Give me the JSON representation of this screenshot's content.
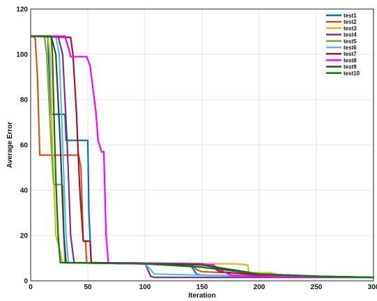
{
  "chart_data": {
    "type": "line",
    "xlabel": "Iteration",
    "ylabel": "Average Error",
    "xlim": [
      0,
      300
    ],
    "ylim": [
      0,
      120
    ],
    "xticks": [
      0,
      50,
      100,
      150,
      200,
      250,
      300
    ],
    "yticks": [
      0,
      20,
      40,
      60,
      80,
      100,
      120
    ],
    "grid": true,
    "legend_position": "top-right",
    "series": [
      {
        "name": "test1",
        "color": "#0072BD",
        "x": [
          0,
          14,
          15,
          18,
          30,
          31,
          47,
          50,
          51,
          53,
          54,
          100,
          120,
          140,
          145,
          150,
          200,
          250,
          300
        ],
        "y": [
          108,
          108,
          107,
          73.5,
          73.5,
          62,
          62,
          62,
          30,
          8,
          8,
          7.8,
          7.5,
          7,
          3,
          2.5,
          2,
          1.7,
          1.5
        ]
      },
      {
        "name": "test2",
        "color": "#D95319",
        "x": [
          0,
          2,
          4,
          6,
          8,
          10,
          42,
          44,
          46,
          48,
          49,
          100,
          140,
          145,
          150,
          200,
          250,
          300
        ],
        "y": [
          108,
          108,
          107,
          90,
          55.5,
          55.5,
          55.5,
          50,
          17.5,
          17.5,
          8,
          7.8,
          7.5,
          5,
          4,
          3,
          2,
          1.5
        ]
      },
      {
        "name": "test3",
        "color": "#EDB120",
        "x": [
          0,
          15,
          17,
          19,
          22,
          25,
          28,
          30,
          100,
          180,
          190,
          191,
          210,
          215,
          216,
          250,
          300
        ],
        "y": [
          108,
          108,
          100,
          60,
          20,
          14.5,
          8,
          8,
          7.5,
          7.5,
          7,
          3.5,
          3.5,
          3,
          2,
          1.8,
          1.5
        ]
      },
      {
        "name": "test4",
        "color": "#7E2F8E",
        "x": [
          0,
          24,
          28,
          32,
          35,
          38,
          40,
          100,
          105,
          108,
          150,
          200,
          250,
          300
        ],
        "y": [
          108,
          108,
          100,
          60,
          20,
          8,
          8,
          7.8,
          2,
          1.5,
          1.5,
          1.5,
          1.5,
          1.5
        ]
      },
      {
        "name": "test5",
        "color": "#77AC30",
        "x": [
          0,
          12,
          14,
          18,
          20,
          21,
          27,
          28,
          29,
          30,
          100,
          150,
          200,
          250,
          300
        ],
        "y": [
          108,
          108,
          100,
          60,
          43,
          42.5,
          42.5,
          42,
          20,
          8,
          7.8,
          7,
          3,
          2,
          1.5
        ]
      },
      {
        "name": "test6",
        "color": "#4DBEEE",
        "x": [
          0,
          22,
          25,
          28,
          31,
          33,
          35,
          100,
          105,
          108,
          150,
          200,
          250,
          300
        ],
        "y": [
          108,
          108,
          100,
          60,
          20,
          8,
          8,
          7.5,
          5,
          3,
          2.5,
          2,
          1.8,
          1.5
        ]
      },
      {
        "name": "test7",
        "color": "#A2142F",
        "x": [
          0,
          35,
          37,
          40,
          43,
          46,
          47,
          52,
          53,
          55,
          100,
          150,
          160,
          165,
          200,
          250,
          300
        ],
        "y": [
          108,
          107.5,
          100,
          75,
          40,
          18,
          17.5,
          17.5,
          8,
          8,
          7.8,
          7.5,
          6,
          4,
          2.5,
          2,
          1.5
        ]
      },
      {
        "name": "test8",
        "color": "#FF00FF",
        "x": [
          0,
          30,
          33,
          35,
          45,
          49,
          52,
          57,
          59,
          62,
          64,
          66,
          68,
          100,
          120,
          150,
          160,
          165,
          175,
          200,
          250,
          300
        ],
        "y": [
          108,
          108,
          103,
          99,
          99,
          99,
          95,
          75,
          62,
          57,
          57,
          20,
          8,
          7.8,
          7.5,
          7.2,
          7,
          5,
          2.5,
          2,
          1.7,
          1.5
        ]
      },
      {
        "name": "test9",
        "color": "#404040",
        "x": [
          0,
          18,
          22,
          26,
          29,
          31,
          33,
          100,
          150,
          200,
          250,
          300
        ],
        "y": [
          108,
          108,
          100,
          60,
          20,
          8,
          8,
          7.5,
          7,
          3,
          2,
          1.5
        ]
      },
      {
        "name": "test10",
        "color": "#008000",
        "x": [
          0,
          18,
          19,
          20,
          22,
          24,
          26,
          28,
          100,
          150,
          200,
          250,
          300
        ],
        "y": [
          108,
          108,
          100,
          80,
          45,
          20,
          8,
          8,
          7.5,
          6,
          3,
          2,
          1.5
        ]
      }
    ]
  }
}
